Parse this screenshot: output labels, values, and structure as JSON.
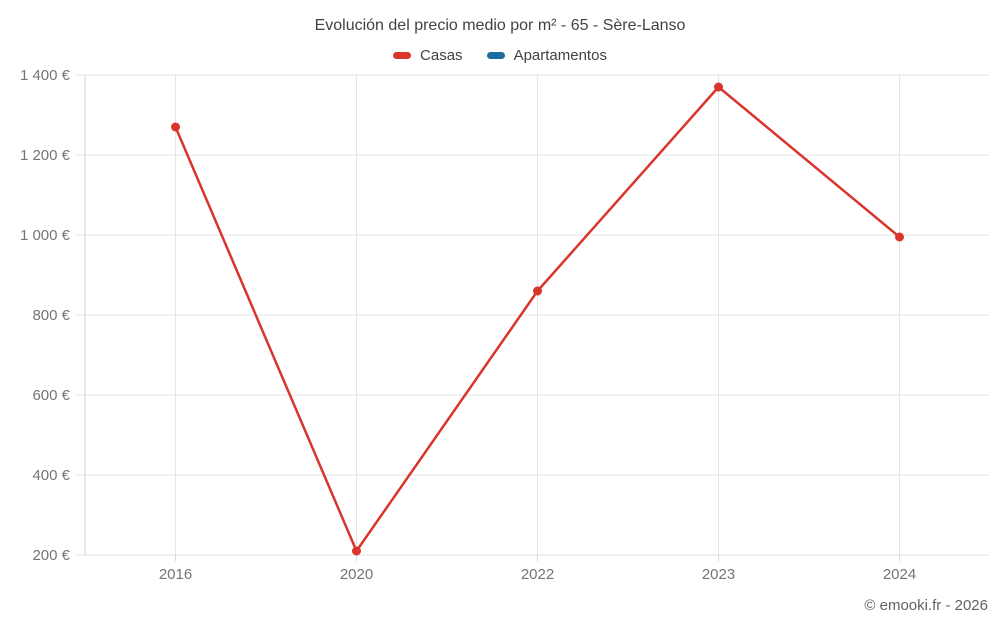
{
  "title": "Evolución del precio medio por m² - 65 - Sère-Lanso",
  "footer": "© emooki.fr - 2026",
  "legend": [
    {
      "label": "Casas",
      "color": "#d9352c"
    },
    {
      "label": "Apartamentos",
      "color": "#1c6e9f"
    }
  ],
  "colors": {
    "grid": "#e6e6e6",
    "axis": "#d9d9d9",
    "tick_text": "#757575",
    "title_text": "#424242",
    "footer_text": "#5f6368",
    "casas_red": "#d9352c",
    "apartamentos_blue": "#1c6e9f",
    "background": "#ffffff"
  },
  "chart_data": {
    "type": "line",
    "title": "Evolución del precio medio por m² - 65 - Sère-Lanso",
    "xlabel": "",
    "ylabel": "",
    "categories": [
      "2016",
      "2020",
      "2022",
      "2023",
      "2024"
    ],
    "series": [
      {
        "name": "Casas",
        "color": "#d9352c",
        "values": [
          1270,
          210,
          860,
          1370,
          995
        ]
      },
      {
        "name": "Apartamentos",
        "color": "#1c6e9f",
        "values": []
      }
    ],
    "ylim": [
      200,
      1400
    ],
    "y_ticks": [
      200,
      400,
      600,
      800,
      1000,
      1200,
      1400
    ],
    "y_tick_labels": [
      "200 €",
      "400 €",
      "600 €",
      "800 €",
      "1 000 €",
      "1 200 €",
      "1 400 €"
    ],
    "grid": true,
    "legend_position": "top"
  }
}
